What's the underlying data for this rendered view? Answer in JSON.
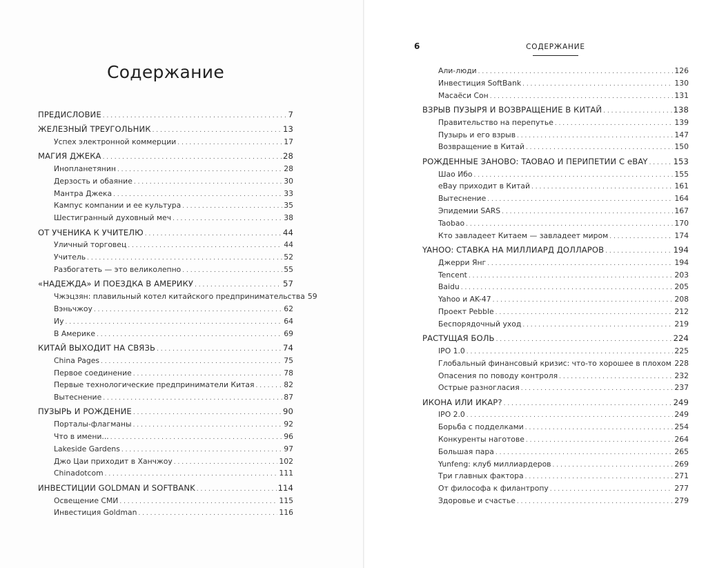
{
  "left_page": {
    "title": "Содержание",
    "entries": [
      {
        "type": "section",
        "label": "ПРЕДИСЛОВИЕ",
        "page": "7"
      },
      {
        "type": "section",
        "label": "ЖЕЛЕЗНЫЙ ТРЕУГОЛЬНИК",
        "page": "13"
      },
      {
        "type": "sub",
        "label": "Успех электронной коммерции",
        "page": "17"
      },
      {
        "type": "section",
        "label": "МАГИЯ ДЖЕКА",
        "page": "28"
      },
      {
        "type": "sub",
        "label": "Инопланетянин",
        "page": "28"
      },
      {
        "type": "sub",
        "label": "Дерзость и обаяние",
        "page": "30"
      },
      {
        "type": "sub",
        "label": "Мантра Джека",
        "page": "33"
      },
      {
        "type": "sub",
        "label": "Кампус компании и ее культура",
        "page": "35"
      },
      {
        "type": "sub",
        "label": "Шестигранный духовный меч",
        "page": "38"
      },
      {
        "type": "section",
        "label": "ОТ УЧЕНИКА К УЧИТЕЛЮ",
        "page": "44"
      },
      {
        "type": "sub",
        "label": "Уличный торговец",
        "page": "44"
      },
      {
        "type": "sub",
        "label": "Учитель",
        "page": "52"
      },
      {
        "type": "sub",
        "label": "Разбогатеть — это великолепно",
        "page": "55"
      },
      {
        "type": "section",
        "label": "«НАДЕЖДА» И ПОЕЗДКА В АМЕРИКУ",
        "page": "57"
      },
      {
        "type": "sub",
        "label": "Чжэцзян: плавильный котел китайского предпринимательства",
        "page": "59"
      },
      {
        "type": "sub",
        "label": "Вэньчжоу",
        "page": "62"
      },
      {
        "type": "sub",
        "label": "Иу",
        "page": "64"
      },
      {
        "type": "sub",
        "label": "В Америке",
        "page": "69"
      },
      {
        "type": "section",
        "label": "КИТАЙ ВЫХОДИТ НА СВЯЗЬ",
        "page": "74"
      },
      {
        "type": "sub",
        "label": "China Pages",
        "page": "75"
      },
      {
        "type": "sub",
        "label": "Первое соединение",
        "page": "78"
      },
      {
        "type": "sub",
        "label": "Первые технологические предприниматели Китая",
        "page": "82"
      },
      {
        "type": "sub",
        "label": "Вытеснение",
        "page": "87"
      },
      {
        "type": "section",
        "label": "ПУЗЫРЬ И РОЖДЕНИЕ",
        "page": "90"
      },
      {
        "type": "sub",
        "label": "Порталы-флагманы",
        "page": "92"
      },
      {
        "type": "sub",
        "label": "Что в имени...",
        "page": "96"
      },
      {
        "type": "sub",
        "label": "Lakeside Gardens",
        "page": "97"
      },
      {
        "type": "sub",
        "label": "Джо Цаи приходит в Ханчжоу",
        "page": "102"
      },
      {
        "type": "sub",
        "label": "Chinadotcom",
        "page": "111"
      },
      {
        "type": "section",
        "label": "ИНВЕСТИЦИИ GOLDMAN И SOFTBANK",
        "page": "114"
      },
      {
        "type": "sub",
        "label": "Освещение СМИ",
        "page": "115"
      },
      {
        "type": "sub",
        "label": "Инвестиция Goldman",
        "page": "116"
      }
    ]
  },
  "right_page": {
    "page_number": "6",
    "running_head": "СОДЕРЖАНИЕ",
    "entries": [
      {
        "type": "sub",
        "label": "Али-люди",
        "page": "126"
      },
      {
        "type": "sub",
        "label": "Инвестиция SoftBank",
        "page": "130"
      },
      {
        "type": "sub",
        "label": "Масаёси Сон",
        "page": "131"
      },
      {
        "type": "section",
        "label": "ВЗРЫВ ПУЗЫРЯ И ВОЗВРАЩЕНИЕ В КИТАЙ",
        "page": "138"
      },
      {
        "type": "sub",
        "label": "Правительство на перепутье",
        "page": "139"
      },
      {
        "type": "sub",
        "label": "Пузырь и его взрыв",
        "page": "147"
      },
      {
        "type": "sub",
        "label": "Возвращение в Китай",
        "page": "150"
      },
      {
        "type": "section",
        "label": "РОЖДЕННЫЕ ЗАНОВО: TAOBAO И ПЕРИПЕТИИ С eBAY",
        "page": "153"
      },
      {
        "type": "sub",
        "label": "Шао Ибо",
        "page": "155"
      },
      {
        "type": "sub",
        "label": "eBay приходит в Китай",
        "page": "161"
      },
      {
        "type": "sub",
        "label": "Вытеснение",
        "page": "164"
      },
      {
        "type": "sub",
        "label": "Эпидемии SARS",
        "page": "167"
      },
      {
        "type": "sub",
        "label": "Taobao",
        "page": "170"
      },
      {
        "type": "sub",
        "label": "Кто завладеет Китаем — завладеет миром",
        "page": "174"
      },
      {
        "type": "section",
        "label": "YAHOO: СТАВКА НА МИЛЛИАРД ДОЛЛАРОВ",
        "page": "194"
      },
      {
        "type": "sub",
        "label": "Джерри Янг",
        "page": "194"
      },
      {
        "type": "sub",
        "label": "Tencent",
        "page": "203"
      },
      {
        "type": "sub",
        "label": "Baidu",
        "page": "205"
      },
      {
        "type": "sub",
        "label": "Yahoo и AK-47",
        "page": "208"
      },
      {
        "type": "sub",
        "label": "Проект Pebble",
        "page": "212"
      },
      {
        "type": "sub",
        "label": "Беспорядочный уход",
        "page": "219"
      },
      {
        "type": "section",
        "label": "РАСТУЩАЯ БОЛЬ",
        "page": "224"
      },
      {
        "type": "sub",
        "label": "IPO 1.0",
        "page": "225"
      },
      {
        "type": "sub",
        "label": "Глобальный финансовый кризис: что-то хорошее в плохом",
        "page": "228"
      },
      {
        "type": "sub",
        "label": "Опасения по поводу контроля",
        "page": "232"
      },
      {
        "type": "sub",
        "label": "Острые разногласия",
        "page": "237"
      },
      {
        "type": "section",
        "label": "ИКОНА ИЛИ ИКАР?",
        "page": "249"
      },
      {
        "type": "sub",
        "label": "IPO 2.0",
        "page": "249"
      },
      {
        "type": "sub",
        "label": "Борьба с подделками",
        "page": "254"
      },
      {
        "type": "sub",
        "label": "Конкуренты наготове",
        "page": "264"
      },
      {
        "type": "sub",
        "label": "Большая пара",
        "page": "265"
      },
      {
        "type": "sub",
        "label": "Yunfeng: клуб миллиардеров",
        "page": "269"
      },
      {
        "type": "sub",
        "label": "Три главных фактора",
        "page": "271"
      },
      {
        "type": "sub",
        "label": "От философа к филантропу",
        "page": "277"
      },
      {
        "type": "sub",
        "label": "Здоровье и счастье",
        "page": "279"
      }
    ]
  }
}
